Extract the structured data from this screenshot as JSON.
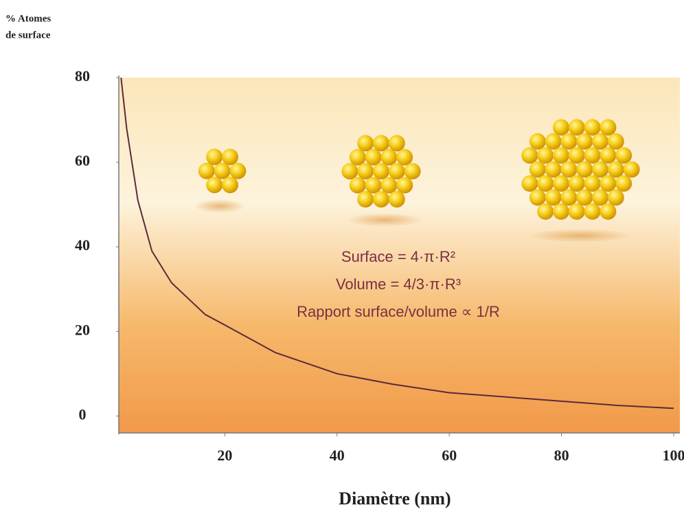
{
  "chart_data": {
    "type": "line",
    "ylabel": [
      "% Atomes",
      "de surface"
    ],
    "xlabel": "Diamètre (nm)",
    "annotations": [
      "Surface = 4·π·R²",
      "Volume = 4/3·π·R³",
      "Rapport surface/volume ∝ 1/R"
    ],
    "x": [
      1.5,
      2.5,
      4.5,
      7,
      10.5,
      16.5,
      20,
      29,
      40,
      50,
      60,
      70,
      80,
      90,
      100
    ],
    "series": [
      {
        "color": "#5a2a3a",
        "values": [
          80,
          68,
          51,
          39,
          31.5,
          24,
          21.5,
          15,
          10,
          7.5,
          5.5,
          4.5,
          3.5,
          2.5,
          1.8
        ]
      }
    ],
    "xlim": [
      0,
      100
    ],
    "xticks": [
      20,
      40,
      60,
      80,
      100
    ],
    "ylim": [
      -4,
      80
    ],
    "yticks": [
      0,
      20,
      40,
      60,
      80
    ],
    "grid": false
  }
}
